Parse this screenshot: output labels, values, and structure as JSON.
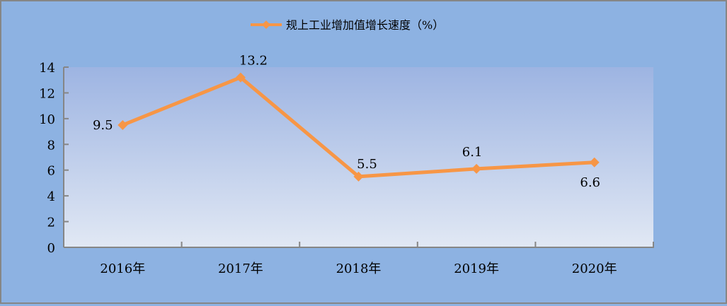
{
  "chart_data": {
    "type": "line",
    "categories": [
      "2016年",
      "2017年",
      "2018年",
      "2019年",
      "2020年"
    ],
    "series": [
      {
        "name": "规上工业增加值增长速度（%）",
        "values": [
          9.5,
          13.2,
          5.5,
          6.1,
          6.6
        ],
        "color": "#f79646",
        "marker": "diamond"
      }
    ],
    "data_labels": [
      "9.5",
      "13.2",
      "5.5",
      "6.1",
      "6.6"
    ],
    "ylim": [
      0,
      14
    ],
    "yticks": [
      0,
      2,
      4,
      6,
      8,
      10,
      12,
      14
    ],
    "grid": false,
    "legend": "top",
    "colors": {
      "background": "#8db2e2",
      "plot_top": "#9db4e2",
      "plot_bottom": "#e1e8f4",
      "axis": "#868686"
    }
  }
}
